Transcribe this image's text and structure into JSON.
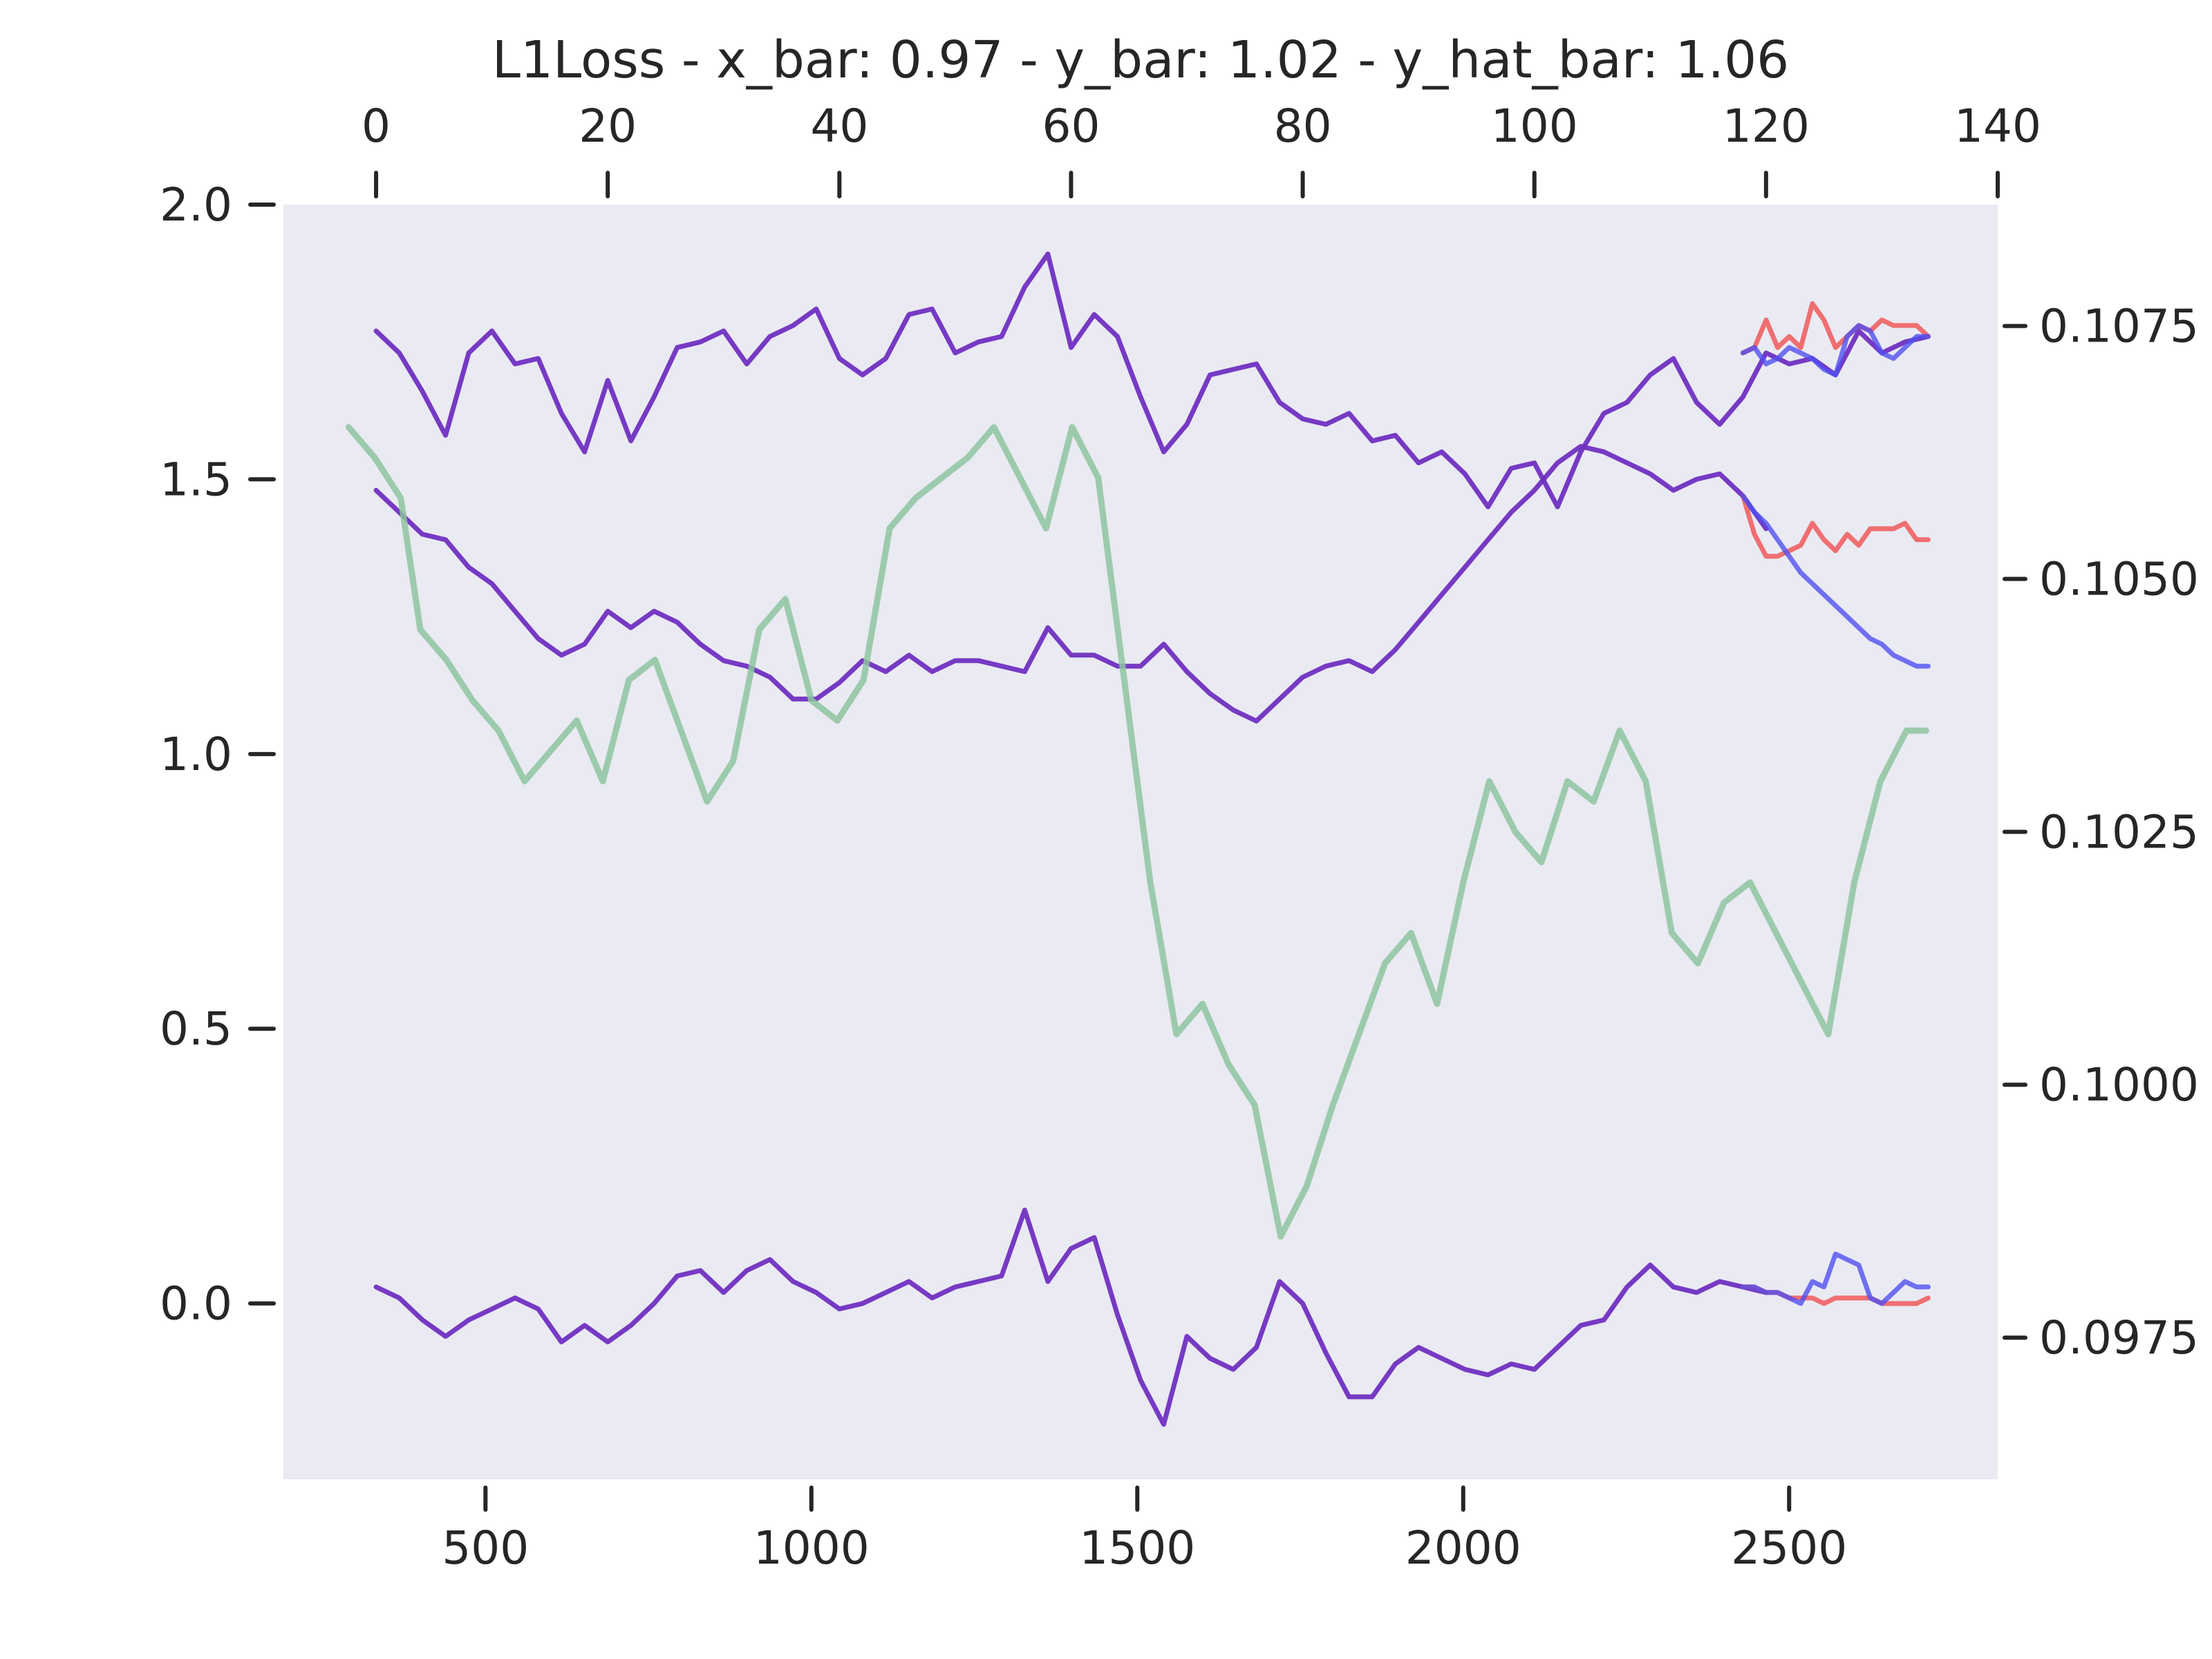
{
  "chart_data": {
    "type": "line",
    "title": "L1Loss - x_bar: 0.97 - y_bar: 1.02 - y_hat_bar: 1.06",
    "xlabel": "",
    "ylabel": "",
    "grid": false,
    "background": "#eaeaf2",
    "axes": {
      "x_bottom": {
        "range": [
          190,
          2820
        ],
        "ticks": [
          500,
          1000,
          1500,
          2000,
          2500
        ]
      },
      "x_top": {
        "range": [
          -8,
          140
        ],
        "ticks": [
          0,
          20,
          40,
          60,
          80,
          100,
          120,
          140
        ]
      },
      "y_left": {
        "range": [
          -0.32,
          2.0
        ],
        "ticks": [
          "0.0",
          "0.5",
          "1.0",
          "1.5",
          "2.0"
        ]
      },
      "y_right": {
        "range": [
          0.0961,
          0.1087
        ],
        "ticks": [
          "0.0975",
          "0.1000",
          "0.1025",
          "0.1050",
          "0.1075"
        ]
      }
    },
    "colors": {
      "purple": "#7030c0",
      "red": "#f05050",
      "blue": "#5050f0",
      "green": "#8ec4a0"
    },
    "series": [
      {
        "axis": "top-left",
        "color": "#7030c0",
        "x": [
          0,
          2,
          4,
          6,
          8,
          10,
          12,
          14,
          16,
          18,
          20,
          22,
          24,
          26,
          28,
          30,
          32,
          34,
          36,
          38,
          40,
          42,
          44,
          46,
          48,
          50,
          52,
          54,
          56,
          58,
          60,
          62,
          64,
          66,
          68,
          70,
          72,
          74,
          76,
          78,
          80,
          82,
          84,
          86,
          88,
          90,
          92,
          94,
          96,
          98,
          100,
          102,
          104,
          106,
          108,
          110,
          112,
          114,
          116,
          118,
          120,
          122,
          124,
          126,
          128,
          130,
          132,
          134
        ],
        "y": [
          1.77,
          1.73,
          1.66,
          1.58,
          1.73,
          1.77,
          1.71,
          1.72,
          1.62,
          1.55,
          1.68,
          1.57,
          1.65,
          1.74,
          1.75,
          1.77,
          1.71,
          1.76,
          1.78,
          1.81,
          1.72,
          1.69,
          1.72,
          1.8,
          1.81,
          1.73,
          1.75,
          1.76,
          1.85,
          1.91,
          1.74,
          1.8,
          1.76,
          1.65,
          1.55,
          1.6,
          1.69,
          1.7,
          1.71,
          1.64,
          1.61,
          1.6,
          1.62,
          1.57,
          1.58,
          1.53,
          1.55,
          1.51,
          1.45,
          1.52,
          1.53,
          1.45,
          1.55,
          1.62,
          1.64,
          1.69,
          1.72,
          1.64,
          1.6,
          1.65,
          1.73,
          1.71,
          1.72,
          1.69,
          1.77,
          1.73,
          1.75,
          1.76
        ]
      },
      {
        "axis": "top-left",
        "color": "#f05050",
        "x": [
          118,
          119,
          120,
          121,
          122,
          123,
          124,
          125,
          126,
          127,
          128,
          129,
          130,
          131,
          132,
          133,
          134
        ],
        "y": [
          1.73,
          1.74,
          1.79,
          1.74,
          1.76,
          1.74,
          1.82,
          1.79,
          1.74,
          1.76,
          1.78,
          1.77,
          1.79,
          1.78,
          1.78,
          1.78,
          1.76
        ]
      },
      {
        "axis": "top-left",
        "color": "#5050f0",
        "x": [
          118,
          119,
          120,
          121,
          122,
          123,
          124,
          125,
          126,
          127,
          128,
          129,
          130,
          131,
          132,
          133,
          134
        ],
        "y": [
          1.73,
          1.74,
          1.71,
          1.72,
          1.74,
          1.73,
          1.72,
          1.7,
          1.69,
          1.76,
          1.78,
          1.77,
          1.73,
          1.72,
          1.74,
          1.76,
          1.76
        ]
      },
      {
        "axis": "top-left",
        "color": "#7030c0",
        "x": [
          0,
          2,
          4,
          6,
          8,
          10,
          12,
          14,
          16,
          18,
          20,
          22,
          24,
          26,
          28,
          30,
          32,
          34,
          36,
          38,
          40,
          42,
          44,
          46,
          48,
          50,
          52,
          54,
          56,
          58,
          60,
          62,
          64,
          66,
          68,
          70,
          72,
          74,
          76,
          78,
          80,
          82,
          84,
          86,
          88,
          90,
          92,
          94,
          96,
          98,
          100,
          102,
          104,
          106,
          108,
          110,
          112,
          114,
          116,
          118,
          120
        ],
        "y": [
          1.48,
          1.44,
          1.4,
          1.39,
          1.34,
          1.31,
          1.26,
          1.21,
          1.18,
          1.2,
          1.26,
          1.23,
          1.26,
          1.24,
          1.2,
          1.17,
          1.16,
          1.14,
          1.1,
          1.1,
          1.13,
          1.17,
          1.15,
          1.18,
          1.15,
          1.17,
          1.17,
          1.16,
          1.15,
          1.23,
          1.18,
          1.18,
          1.16,
          1.16,
          1.2,
          1.15,
          1.11,
          1.08,
          1.06,
          1.1,
          1.14,
          1.16,
          1.17,
          1.15,
          1.19,
          1.24,
          1.29,
          1.34,
          1.39,
          1.44,
          1.48,
          1.53,
          1.56,
          1.55,
          1.53,
          1.51,
          1.48,
          1.5,
          1.51,
          1.47,
          1.41
        ]
      },
      {
        "axis": "top-left",
        "color": "#f05050",
        "x": [
          118,
          119,
          120,
          121,
          122,
          123,
          124,
          125,
          126,
          127,
          128,
          129,
          130,
          131,
          132,
          133,
          134
        ],
        "y": [
          1.47,
          1.4,
          1.36,
          1.36,
          1.37,
          1.38,
          1.42,
          1.39,
          1.37,
          1.4,
          1.38,
          1.41,
          1.41,
          1.41,
          1.42,
          1.39,
          1.39
        ]
      },
      {
        "axis": "top-left",
        "color": "#5050f0",
        "x": [
          118,
          119,
          120,
          121,
          122,
          123,
          124,
          125,
          126,
          127,
          128,
          129,
          130,
          131,
          132,
          133,
          134
        ],
        "y": [
          1.47,
          1.44,
          1.42,
          1.39,
          1.36,
          1.33,
          1.31,
          1.29,
          1.27,
          1.25,
          1.23,
          1.21,
          1.2,
          1.18,
          1.17,
          1.16,
          1.16
        ]
      },
      {
        "axis": "top-left",
        "color": "#7030c0",
        "x": [
          0,
          2,
          4,
          6,
          8,
          10,
          12,
          14,
          16,
          18,
          20,
          22,
          24,
          26,
          28,
          30,
          32,
          34,
          36,
          38,
          40,
          42,
          44,
          46,
          48,
          50,
          52,
          54,
          56,
          58,
          60,
          62,
          64,
          66,
          68,
          70,
          72,
          74,
          76,
          78,
          80,
          82,
          84,
          86,
          88,
          90,
          92,
          94,
          96,
          98,
          100,
          102,
          104,
          106,
          108,
          110,
          112,
          114,
          116,
          118,
          120
        ],
        "y": [
          0.03,
          0.01,
          -0.03,
          -0.06,
          -0.03,
          -0.01,
          0.01,
          -0.01,
          -0.07,
          -0.04,
          -0.07,
          -0.04,
          0.0,
          0.05,
          0.06,
          0.02,
          0.06,
          0.08,
          0.04,
          0.02,
          -0.01,
          0.0,
          0.02,
          0.04,
          0.01,
          0.03,
          0.04,
          0.05,
          0.17,
          0.04,
          0.1,
          0.12,
          -0.02,
          -0.14,
          -0.22,
          -0.06,
          -0.1,
          -0.12,
          -0.08,
          0.04,
          0.0,
          -0.09,
          -0.17,
          -0.17,
          -0.11,
          -0.08,
          -0.1,
          -0.12,
          -0.13,
          -0.11,
          -0.12,
          -0.08,
          -0.04,
          -0.03,
          0.03,
          0.07,
          0.03,
          0.02,
          0.04,
          0.03,
          0.02
        ]
      },
      {
        "axis": "top-left",
        "color": "#f05050",
        "x": [
          118,
          119,
          120,
          121,
          122,
          123,
          124,
          125,
          126,
          127,
          128,
          129,
          130,
          131,
          132,
          133,
          134
        ],
        "y": [
          0.03,
          0.03,
          0.02,
          0.02,
          0.01,
          0.01,
          0.01,
          0.0,
          0.01,
          0.01,
          0.01,
          0.01,
          0.0,
          0.0,
          0.0,
          0.0,
          0.01
        ]
      },
      {
        "axis": "top-left",
        "color": "#5050f0",
        "x": [
          118,
          119,
          120,
          121,
          122,
          123,
          124,
          125,
          126,
          127,
          128,
          129,
          130,
          131,
          132,
          133,
          134
        ],
        "y": [
          0.03,
          0.03,
          0.02,
          0.02,
          0.01,
          0.0,
          0.04,
          0.03,
          0.09,
          0.08,
          0.07,
          0.01,
          0.0,
          0.02,
          0.04,
          0.03,
          0.03
        ]
      },
      {
        "axis": "bottom-right",
        "color": "#8ec4a0",
        "x": [
          290,
          330,
          370,
          400,
          440,
          480,
          520,
          560,
          600,
          640,
          680,
          720,
          760,
          800,
          840,
          880,
          920,
          960,
          1000,
          1040,
          1080,
          1120,
          1160,
          1200,
          1240,
          1280,
          1320,
          1360,
          1400,
          1440,
          1480,
          1520,
          1560,
          1600,
          1640,
          1680,
          1720,
          1760,
          1800,
          1840,
          1880,
          1920,
          1960,
          2000,
          2040,
          2080,
          2120,
          2160,
          2200,
          2240,
          2280,
          2320,
          2360,
          2400,
          2440,
          2480,
          2520,
          2560,
          2600,
          2640,
          2680,
          2710
        ],
        "y": [
          0.1065,
          0.1062,
          0.1058,
          0.1045,
          0.1042,
          0.1038,
          0.1035,
          0.103,
          0.1033,
          0.1036,
          0.103,
          0.104,
          0.1042,
          0.1035,
          0.1028,
          0.1032,
          0.1045,
          0.1048,
          0.1038,
          0.1036,
          0.104,
          0.1055,
          0.1058,
          0.106,
          0.1062,
          0.1065,
          0.106,
          0.1055,
          0.1065,
          0.106,
          0.104,
          0.102,
          0.1005,
          0.1008,
          0.1002,
          0.0998,
          0.0985,
          0.099,
          0.0998,
          0.1005,
          0.1012,
          0.1015,
          0.1008,
          0.102,
          0.103,
          0.1025,
          0.1022,
          0.103,
          0.1028,
          0.1035,
          0.103,
          0.1015,
          0.1012,
          0.1018,
          0.102,
          0.1015,
          0.101,
          0.1005,
          0.102,
          0.103,
          0.1035,
          0.1035
        ]
      }
    ]
  }
}
